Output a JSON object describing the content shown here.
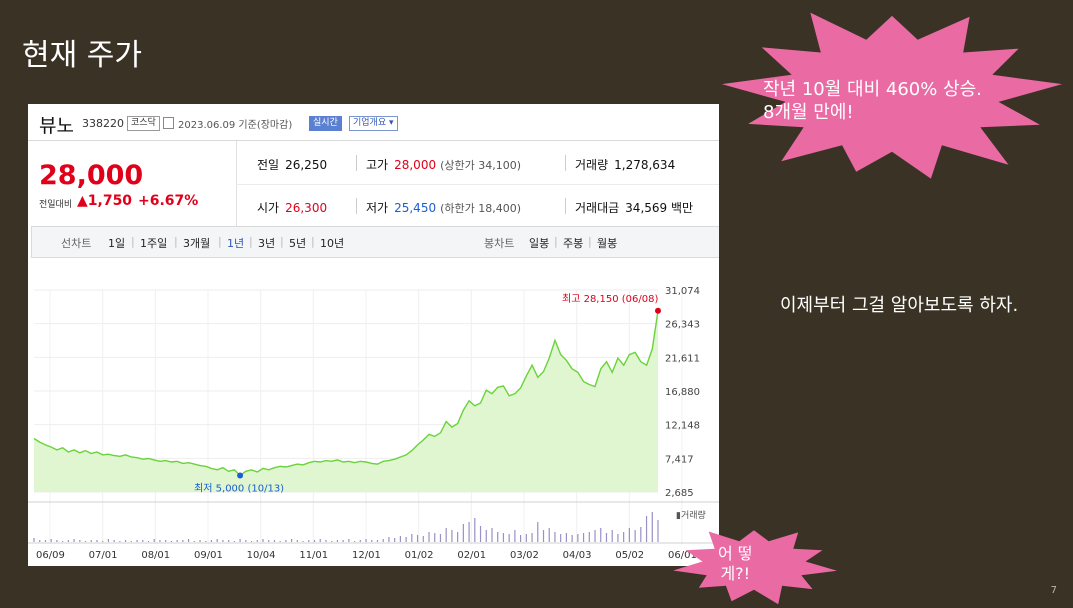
{
  "slide": {
    "title": "현재 주가",
    "side_text": "이제부터 그걸 알아보도록 하자.",
    "page_number": "7",
    "callout_1": [
      "작년 10월 대비 460% 상승.",
      "8개월 만에!"
    ],
    "callout_2": [
      "어 떻",
      "게?!"
    ],
    "callout_color": "#ea6aa3",
    "background_color": "#3a3325"
  },
  "stock": {
    "name": "뷰노",
    "code": "338220",
    "market": "코스닥",
    "date": "2023.06.09  기준(장마감)",
    "live_tag": "실시간",
    "info_tag": "기업개요 ▾",
    "price": "28,000",
    "change_label": "전일대비",
    "change": "▲1,750",
    "change_pct": "+6.67%",
    "prev_close_label": "전일",
    "prev_close": "26,250",
    "high_label": "고가",
    "high": "28,000",
    "upper_limit": "(상한가 34,100)",
    "volume_label": "거래량",
    "volume": "1,278,634",
    "open_label": "시가",
    "open": "26,300",
    "low_label": "저가",
    "low": "25,450",
    "lower_limit": "(하한가 18,400)",
    "amount_label": "거래대금",
    "amount": "34,569 백만",
    "up_color": "#e0001a",
    "down_color": "#1a5fd1"
  },
  "periods": {
    "line_label": "선차트",
    "items": [
      "1일",
      "1주일",
      "3개월",
      "1년",
      "3년",
      "5년",
      "10년"
    ],
    "active": "1년",
    "candle_label": "봉차트",
    "candle_items": [
      "일봉",
      "주봉",
      "월봉"
    ]
  },
  "chart_data": {
    "type": "area",
    "x_ticks": [
      "06/09",
      "07/01",
      "08/01",
      "09/01",
      "10/04",
      "11/01",
      "12/01",
      "01/02",
      "02/01",
      "03/02",
      "04/03",
      "05/02",
      "06/01"
    ],
    "y_ticks": [
      "31,074",
      "26,343",
      "21,611",
      "16,880",
      "12,148",
      "7,417",
      "2,685"
    ],
    "ylim": [
      2685,
      31074
    ],
    "high_annotation": "최고 28,150 (06/08)",
    "low_annotation": "최저 5,000 (10/13)",
    "volume_label": "▮거래량",
    "line_color": "#6ad33a",
    "fill_color": "#dff6d0",
    "series": [
      {
        "values": [
          10200,
          9700,
          9300,
          9000,
          8600,
          8900,
          8300,
          8600,
          8200,
          8500,
          8100,
          8300,
          7900,
          8000,
          7800,
          7700,
          7900,
          7600,
          7500,
          7300,
          7400,
          7200,
          7000,
          7100,
          6900,
          7000,
          6700,
          6800,
          6600,
          6400,
          6300,
          6000,
          5800,
          6100,
          5600,
          5800,
          5000,
          5600,
          5800,
          5500,
          6000,
          5800,
          6100,
          6300,
          6200,
          6400,
          6600,
          6500,
          6800,
          7000,
          6900,
          7100,
          7000,
          7200,
          6900,
          7000,
          6800,
          7000,
          6900,
          6700,
          6600,
          7000,
          7100,
          7300,
          7600,
          7900,
          8500,
          9300,
          10000,
          10800,
          10500,
          11000,
          12600,
          11800,
          12300,
          14200,
          15500,
          14800,
          15200,
          17000,
          16500,
          17400,
          17600,
          16200,
          16500,
          17300,
          19000,
          20500,
          18800,
          19600,
          21500,
          24000,
          22000,
          21200,
          20000,
          19500,
          18200,
          17800,
          17500,
          20000,
          21000,
          19500,
          21500,
          20500,
          22000,
          22300,
          21000,
          20500,
          22800,
          28150
        ]
      }
    ],
    "volume": [
      4,
      2,
      2,
      3,
      2,
      1,
      2,
      3,
      2,
      1,
      2,
      2,
      1,
      3,
      2,
      1,
      2,
      1,
      2,
      2,
      1,
      3,
      2,
      2,
      1,
      2,
      2,
      3,
      1,
      2,
      1,
      2,
      3,
      2,
      2,
      1,
      3,
      2,
      1,
      2,
      3,
      2,
      2,
      1,
      2,
      3,
      2,
      1,
      2,
      2,
      3,
      2,
      1,
      2,
      2,
      3,
      1,
      2,
      3,
      2,
      2,
      3,
      5,
      4,
      6,
      5,
      8,
      7,
      6,
      10,
      9,
      8,
      14,
      12,
      10,
      18,
      20,
      24,
      16,
      12,
      14,
      10,
      9,
      8,
      12,
      7,
      8,
      9,
      20,
      12,
      14,
      10,
      8,
      9,
      7,
      8,
      9,
      10,
      12,
      14,
      9,
      12,
      8,
      10,
      14,
      12,
      15,
      26,
      30,
      22
    ]
  }
}
